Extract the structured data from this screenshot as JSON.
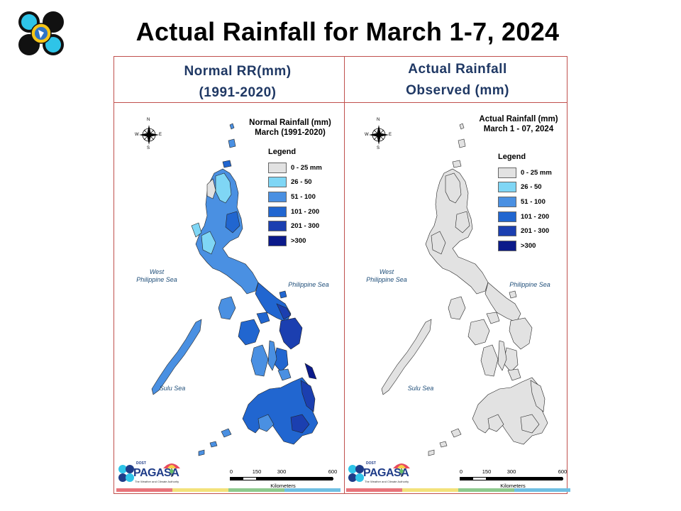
{
  "slide": {
    "title": "Actual Rainfall for March 1-7, 2024"
  },
  "headers": {
    "left_line1": "Normal RR(mm)",
    "left_line2": "(1991-2020)",
    "right_line1": "Actual Rainfall",
    "right_line2": "Observed (mm)"
  },
  "maps": [
    {
      "title_line1": "Normal Rainfall (mm)",
      "title_line2": "March (1991-2020)",
      "legend_title": "Legend"
    },
    {
      "title_line1": "Actual Rainfall (mm)",
      "title_line2": "March 1 - 07, 2024",
      "legend_title": "Legend"
    }
  ],
  "legend": [
    {
      "label": "0 - 25 mm",
      "color": "#e2e2e2"
    },
    {
      "label": "26 - 50",
      "color": "#7fd6f5"
    },
    {
      "label": "51 - 100",
      "color": "#4a90e2"
    },
    {
      "label": "101 - 200",
      "color": "#2166d0"
    },
    {
      "label": "201 - 300",
      "color": "#1b3fb0"
    },
    {
      "label": ">300",
      "color": "#0b1a8a"
    }
  ],
  "sea_labels": {
    "west_line1": "West",
    "west_line2": "Philippine Sea",
    "philippine": "Philippine Sea",
    "sulu": "Sulu Sea"
  },
  "compass": {
    "n": "N",
    "s": "S",
    "e": "E",
    "w": "W"
  },
  "scale": {
    "ticks": [
      "0",
      "150",
      "300",
      "600"
    ],
    "unit": "Kilometers"
  },
  "branding": {
    "name": "PAGASA",
    "prefix": "DOST",
    "tagline": "The Weather and Climate Authority",
    "strip_colors": [
      "#e8737a",
      "#f3e27a",
      "#8dc98d",
      "#6fbfe3"
    ]
  }
}
